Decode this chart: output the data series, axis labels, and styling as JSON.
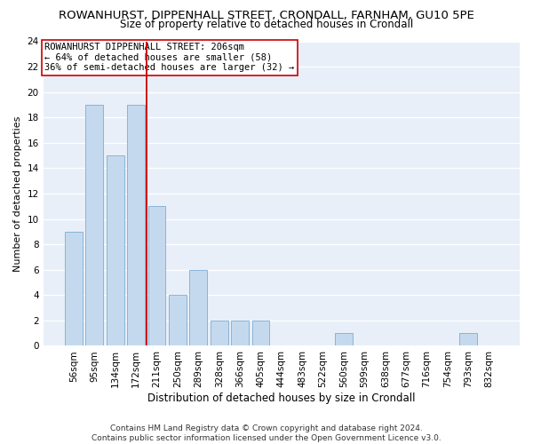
{
  "title": "ROWANHURST, DIPPENHALL STREET, CRONDALL, FARNHAM, GU10 5PE",
  "subtitle": "Size of property relative to detached houses in Crondall",
  "xlabel": "Distribution of detached houses by size in Crondall",
  "ylabel": "Number of detached properties",
  "categories": [
    "56sqm",
    "95sqm",
    "134sqm",
    "172sqm",
    "211sqm",
    "250sqm",
    "289sqm",
    "328sqm",
    "366sqm",
    "405sqm",
    "444sqm",
    "483sqm",
    "522sqm",
    "560sqm",
    "599sqm",
    "638sqm",
    "677sqm",
    "716sqm",
    "754sqm",
    "793sqm",
    "832sqm"
  ],
  "values": [
    9,
    19,
    15,
    19,
    11,
    4,
    6,
    2,
    2,
    2,
    0,
    0,
    0,
    1,
    0,
    0,
    0,
    0,
    0,
    1,
    0
  ],
  "bar_color": "#c5d9ee",
  "bar_edge_color": "#7aadd4",
  "vline_x": 3.5,
  "vline_color": "#cc0000",
  "annotation_line1": "ROWANHURST DIPPENHALL STREET: 206sqm",
  "annotation_line2": "← 64% of detached houses are smaller (58)",
  "annotation_line3": "36% of semi-detached houses are larger (32) →",
  "annotation_box_edgecolor": "#cc0000",
  "ylim": [
    0,
    24
  ],
  "yticks": [
    0,
    2,
    4,
    6,
    8,
    10,
    12,
    14,
    16,
    18,
    20,
    22,
    24
  ],
  "footer_line1": "Contains HM Land Registry data © Crown copyright and database right 2024.",
  "footer_line2": "Contains public sector information licensed under the Open Government Licence v3.0.",
  "plot_bg_color": "#e8eff8",
  "title_fontsize": 9.5,
  "subtitle_fontsize": 8.5,
  "tick_fontsize": 7.5,
  "ylabel_fontsize": 8,
  "xlabel_fontsize": 8.5,
  "annotation_fontsize": 7.5,
  "footer_fontsize": 6.5
}
